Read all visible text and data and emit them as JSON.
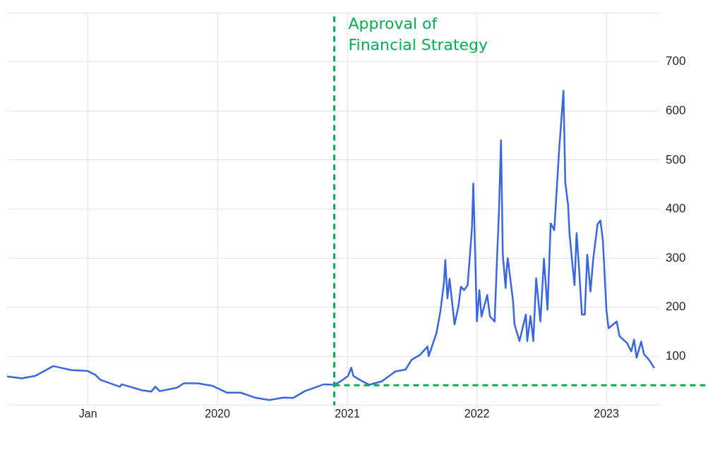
{
  "chart_data": {
    "type": "line",
    "x": [
      "2018-05-18",
      "2018-06-28",
      "2018-08-05",
      "2018-09-25",
      "2018-11-15",
      "2019-01-01",
      "2019-01-22",
      "2019-02-05",
      "2019-04-01",
      "2019-04-06",
      "2019-06-01",
      "2019-06-28",
      "2019-07-10",
      "2019-07-22",
      "2019-09-09",
      "2019-09-28",
      "2019-11-06",
      "2019-12-17",
      "2020-01-27",
      "2020-03-06",
      "2020-04-15",
      "2020-05-26",
      "2020-07-05",
      "2020-08-01",
      "2020-09-03",
      "2020-10-27",
      "2020-11-25",
      "2020-12-13",
      "2021-01-03",
      "2021-01-12",
      "2021-01-18",
      "2021-02-10",
      "2021-03-04",
      "2021-04-08",
      "2021-05-16",
      "2021-06-14",
      "2021-07-01",
      "2021-07-25",
      "2021-08-15",
      "2021-08-18",
      "2021-09-09",
      "2021-09-20",
      "2021-09-30",
      "2021-10-04",
      "2021-10-10",
      "2021-10-16",
      "2021-10-30",
      "2021-11-10",
      "2021-11-17",
      "2021-11-26",
      "2021-12-06",
      "2021-12-18",
      "2021-12-22",
      "2022-01-01",
      "2022-01-08",
      "2022-01-14",
      "2022-01-30",
      "2022-02-07",
      "2022-02-20",
      "2022-02-28",
      "2022-03-04",
      "2022-03-10",
      "2022-03-15",
      "2022-03-23",
      "2022-03-26",
      "2022-03-29",
      "2022-04-13",
      "2022-04-17",
      "2022-05-01",
      "2022-05-19",
      "2022-05-23",
      "2022-06-01",
      "2022-06-09",
      "2022-06-17",
      "2022-06-29",
      "2022-07-09",
      "2022-07-19",
      "2022-07-28",
      "2022-08-07",
      "2022-08-21",
      "2022-09-02",
      "2022-09-07",
      "2022-09-15",
      "2022-09-19",
      "2022-09-27",
      "2022-10-03",
      "2022-10-09",
      "2022-10-15",
      "2022-10-24",
      "2022-11-01",
      "2022-11-08",
      "2022-11-17",
      "2022-11-25",
      "2022-12-07",
      "2022-12-15",
      "2022-12-22",
      "2023-01-01",
      "2023-01-07",
      "2023-01-30",
      "2023-02-07",
      "2023-02-28",
      "2023-03-12",
      "2023-03-20",
      "2023-03-27",
      "2023-04-09",
      "2023-04-17",
      "2023-05-01",
      "2023-05-16"
    ],
    "series": [
      {
        "color": "#3a66e0",
        "values": [
          59,
          55,
          60,
          80,
          72,
          70,
          62,
          52,
          38,
          43,
          31,
          28,
          38,
          29,
          36,
          45,
          45,
          40,
          26,
          26,
          16,
          11,
          16,
          15,
          29,
          43,
          42,
          49,
          60,
          77,
          60,
          50,
          42,
          49,
          69,
          73,
          93,
          103,
          120,
          100,
          147,
          191,
          249,
          296,
          218,
          258,
          165,
          202,
          242,
          235,
          245,
          361,
          452,
          171,
          235,
          181,
          225,
          181,
          171,
          322,
          391,
          540,
          307,
          239,
          279,
          300,
          212,
          165,
          131,
          185,
          131,
          182,
          131,
          259,
          171,
          299,
          195,
          371,
          357,
          523,
          641,
          455,
          408,
          350,
          289,
          245,
          351,
          289,
          185,
          185,
          307,
          232,
          299,
          369,
          377,
          337,
          195,
          157,
          171,
          141,
          127,
          110,
          134,
          97,
          130,
          104,
          93,
          76
        ]
      }
    ],
    "xlim": [
      "2018-05-18",
      "2023-06-01"
    ],
    "xticks": [
      {
        "value": "2019",
        "label": "Jan"
      },
      {
        "value": "2020",
        "label": "2020"
      },
      {
        "value": "2021",
        "label": "2021"
      },
      {
        "value": "2022",
        "label": "2022"
      },
      {
        "value": "2023",
        "label": "2023"
      }
    ],
    "ylim": [
      0,
      800
    ],
    "yticks": [
      {
        "value": 0,
        "label": null
      },
      100,
      200,
      300,
      400,
      500,
      600,
      700,
      {
        "value": 800,
        "label": null
      }
    ],
    "grid": true,
    "legend": false,
    "marker": "none",
    "line_style": "solid",
    "ref_lines": [
      {
        "axis": "x",
        "value": "2020-11-25",
        "label": "Approval of Financial Strategy",
        "color": "#00b050",
        "line_style": "dashed"
      },
      {
        "axis": "y",
        "value": 41,
        "color": "#00b050",
        "line_style": "dashed"
      }
    ]
  }
}
